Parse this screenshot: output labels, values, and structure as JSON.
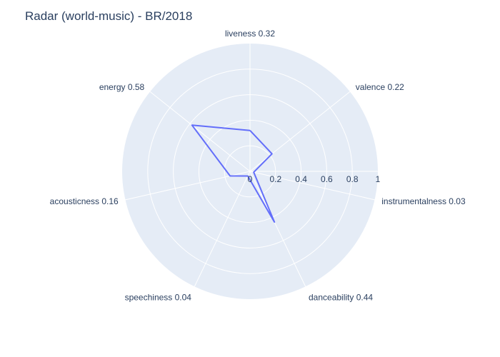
{
  "chart_data": {
    "type": "radar",
    "title": "Radar (world-music) - BR/2018",
    "categories": [
      "liveness",
      "valence",
      "instrumentalness",
      "danceability",
      "speechiness",
      "acousticness",
      "energy"
    ],
    "values": [
      0.32,
      0.22,
      0.03,
      0.44,
      0.04,
      0.16,
      0.58
    ],
    "axis_labels": [
      "liveness 0.32",
      "valence 0.22",
      "instrumentalness 0.03",
      "danceability 0.44",
      "speechiness 0.04",
      "acousticness 0.16",
      "energy 0.58"
    ],
    "radial_range": [
      0,
      1
    ],
    "radial_ticks": [
      "0",
      "0.2",
      "0.4",
      "0.6",
      "0.8",
      "1"
    ],
    "colors": {
      "bg": "#e5ecf6",
      "grid": "#ffffff",
      "line": "#636efa",
      "text": "#2a3f5f"
    }
  }
}
